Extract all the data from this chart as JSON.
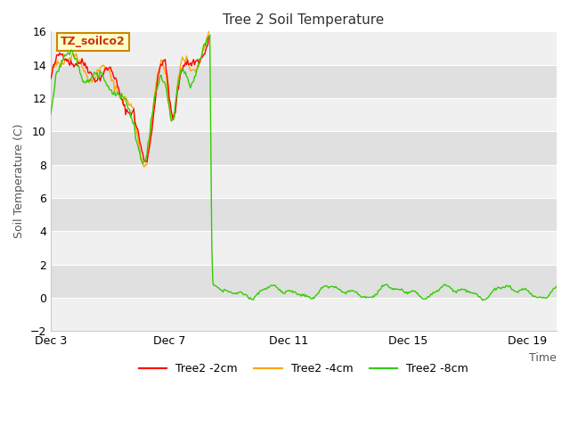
{
  "title": "Tree 2 Soil Temperature",
  "xlabel": "Time",
  "ylabel": "Soil Temperature (C)",
  "ylim": [
    -2,
    16
  ],
  "yticks": [
    -2,
    0,
    2,
    4,
    6,
    8,
    10,
    12,
    14,
    16
  ],
  "xtick_labels": [
    "Dec 3",
    "Dec 7",
    "Dec 11",
    "Dec 15",
    "Dec 19"
  ],
  "xtick_positions": [
    0,
    4,
    8,
    12,
    16
  ],
  "annotation": "TZ_soilco2",
  "line_colors": [
    "#ff0000",
    "#ffa500",
    "#33cc00"
  ],
  "line_labels": [
    "Tree2 -2cm",
    "Tree2 -4cm",
    "Tree2 -8cm"
  ],
  "bg_color": "#ffffff",
  "plot_bg_light": "#f0f0f0",
  "plot_bg_dark": "#e0e0e0",
  "grid_color": "#ffffff",
  "figsize": [
    6.4,
    4.8
  ],
  "dpi": 100,
  "xlim": [
    0,
    17
  ],
  "transition_day": 5.35
}
